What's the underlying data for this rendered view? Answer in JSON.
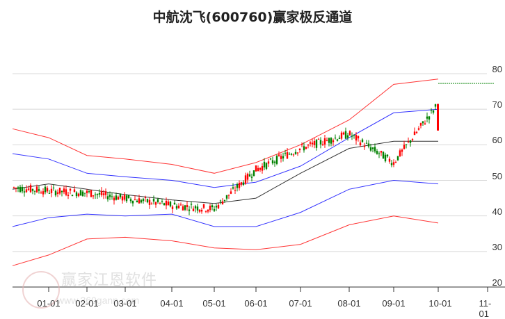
{
  "title": "中航沈飞(600760)赢家极反通道",
  "watermark": {
    "text": "赢家江恩软件",
    "url": "www.360gann.com"
  },
  "colors": {
    "up": "#ff0000",
    "down": "#008000",
    "outer_band": "#ff0000",
    "inner_band": "#0000ff",
    "middle": "#000000",
    "grid": "#d8d8d8",
    "last_price_line": "#008000"
  },
  "chart_data": {
    "type": "candlestick_with_channels",
    "title": "中航沈飞(600760)赢家极反通道",
    "xlabel": "",
    "ylabel": "",
    "ylim": [
      20,
      80
    ],
    "y_ticks": [
      20,
      30,
      40,
      50,
      60,
      70,
      80
    ],
    "x_ticks": [
      "01-01",
      "02-01",
      "03-01",
      "04-01",
      "05-01",
      "06-01",
      "07-01",
      "08-01",
      "09-01",
      "10-01",
      "11-01"
    ],
    "grid": true,
    "last_price": 71.5,
    "series": [
      {
        "name": "outer_upper",
        "color": "#ff0000",
        "x": [
          "12-15",
          "01-01",
          "02-01",
          "03-01",
          "04-01",
          "05-01",
          "06-01",
          "07-01",
          "08-01",
          "09-01",
          "10-01"
        ],
        "values": [
          64.5,
          62,
          57,
          56,
          54.5,
          52,
          55,
          60,
          67,
          77,
          78.5
        ]
      },
      {
        "name": "inner_upper",
        "color": "#0000ff",
        "x": [
          "12-15",
          "01-01",
          "02-01",
          "03-01",
          "04-01",
          "05-01",
          "06-01",
          "07-01",
          "08-01",
          "09-01",
          "10-01"
        ],
        "values": [
          57.5,
          56,
          52,
          51,
          50,
          48,
          49.5,
          54,
          62,
          69,
          70
        ]
      },
      {
        "name": "middle",
        "color": "#000000",
        "x": [
          "12-15",
          "01-01",
          "02-01",
          "03-01",
          "04-01",
          "05-01",
          "06-01",
          "07-01",
          "08-01",
          "09-01",
          "10-01"
        ],
        "values": [
          47.5,
          49,
          47.5,
          46,
          44.5,
          43.5,
          45,
          52,
          59,
          61,
          61
        ]
      },
      {
        "name": "inner_lower",
        "color": "#0000ff",
        "x": [
          "12-15",
          "01-01",
          "02-01",
          "03-01",
          "04-01",
          "05-01",
          "06-01",
          "07-01",
          "08-01",
          "09-01",
          "10-01"
        ],
        "values": [
          37,
          39.5,
          40.5,
          40,
          40.5,
          37,
          37,
          41,
          47.5,
          50,
          49
        ]
      },
      {
        "name": "outer_lower",
        "color": "#ff0000",
        "x": [
          "12-15",
          "01-01",
          "02-01",
          "03-01",
          "04-01",
          "05-01",
          "06-01",
          "07-01",
          "08-01",
          "09-01",
          "10-01"
        ],
        "values": [
          26,
          29,
          33.5,
          34,
          33,
          31,
          30.5,
          32,
          37.5,
          40,
          38
        ]
      },
      {
        "name": "price_close",
        "color": "#ff0000",
        "x": [
          "12-15",
          "01-01",
          "02-01",
          "03-01",
          "04-01",
          "05-01",
          "06-01",
          "07-01",
          "08-01",
          "09-01",
          "10-01"
        ],
        "values": [
          48,
          47,
          46.5,
          45,
          43,
          42,
          53,
          59,
          63,
          55,
          71.5
        ]
      }
    ]
  },
  "axis": {
    "y_labels": [
      "80",
      "70",
      "60",
      "50",
      "40",
      "30",
      "20"
    ],
    "x_labels": [
      "01-01",
      "02-01",
      "03-01",
      "04-01",
      "05-01",
      "06-01",
      "07-01",
      "08-01",
      "09-01",
      "10-01",
      "11-01"
    ]
  }
}
